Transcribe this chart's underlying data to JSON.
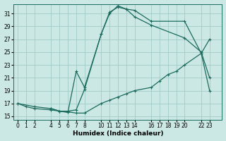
{
  "xlabel": "Humidex (Indice chaleur)",
  "bg_color": "#cce8e4",
  "grid_color": "#a0ccc8",
  "line_color": "#1a6b5e",
  "xlim": [
    -0.5,
    24.5
  ],
  "ylim": [
    14.5,
    32.5
  ],
  "yticks": [
    15,
    17,
    19,
    21,
    23,
    25,
    27,
    29,
    31
  ],
  "xticks": [
    0,
    1,
    2,
    4,
    5,
    6,
    7,
    8,
    10,
    11,
    12,
    13,
    14,
    16,
    17,
    18,
    19,
    20,
    22,
    23
  ],
  "line1_x": [
    0,
    1,
    2,
    4,
    5,
    6,
    7,
    8,
    10,
    11,
    12,
    13,
    14,
    16,
    17,
    18,
    19,
    20,
    22,
    23
  ],
  "line1_y": [
    17,
    16.5,
    16.2,
    16.0,
    15.8,
    15.7,
    15.5,
    15.5,
    17.0,
    17.5,
    18.0,
    18.5,
    19.0,
    19.5,
    20.5,
    21.5,
    22.0,
    23.0,
    24.8,
    27.0
  ],
  "line2_x": [
    0,
    2,
    4,
    5,
    6,
    7,
    8,
    10,
    11,
    12,
    13,
    14,
    16,
    20,
    22,
    23
  ],
  "line2_y": [
    17,
    16.5,
    16.2,
    15.8,
    15.8,
    16.0,
    19.2,
    27.8,
    31.2,
    32.0,
    31.7,
    30.5,
    29.2,
    27.2,
    25.0,
    21.0
  ],
  "line3_x": [
    4,
    5,
    6,
    7,
    8,
    10,
    11,
    12,
    13,
    14,
    16,
    20,
    22,
    23
  ],
  "line3_y": [
    16.2,
    15.8,
    15.6,
    22.0,
    19.5,
    27.8,
    31.0,
    32.2,
    31.7,
    31.5,
    29.8,
    29.8,
    24.8,
    19.0
  ]
}
